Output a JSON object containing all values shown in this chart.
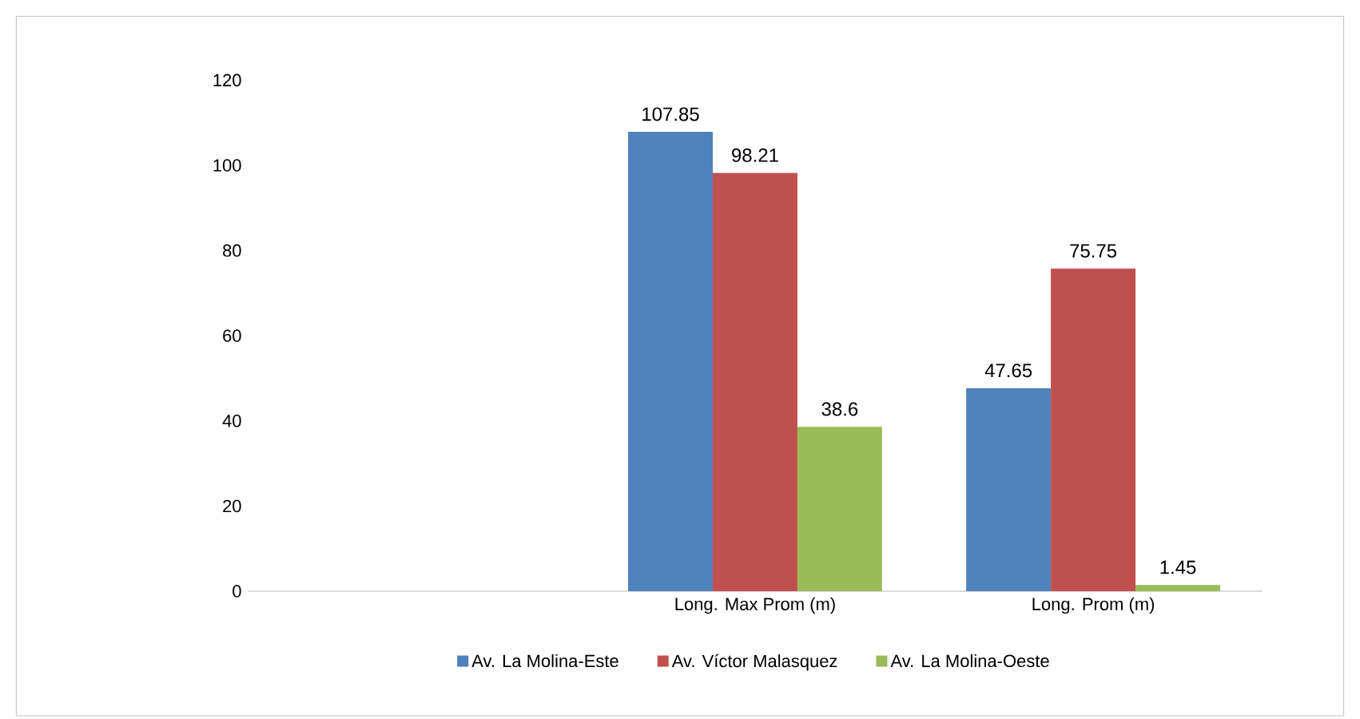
{
  "chart_data": {
    "type": "bar",
    "categories": [
      null,
      "Long. Max Prom (m)",
      "Long. Prom (m)"
    ],
    "series": [
      {
        "name": "Av. La Molina-Este",
        "color": "#4f81bd",
        "values": [
          null,
          107.85,
          47.65
        ]
      },
      {
        "name": "Av. Víctor Malasquez",
        "color": "#c0504d",
        "values": [
          null,
          98.21,
          75.75
        ]
      },
      {
        "name": "Av. La Molina-Oeste",
        "color": "#9bbb59",
        "values": [
          null,
          38.6,
          1.45
        ]
      }
    ],
    "ylim": [
      0,
      120
    ],
    "yticks": [
      0,
      20,
      40,
      60,
      80,
      100,
      120
    ],
    "data_labels": true,
    "legend": "bottom",
    "grid": false
  }
}
